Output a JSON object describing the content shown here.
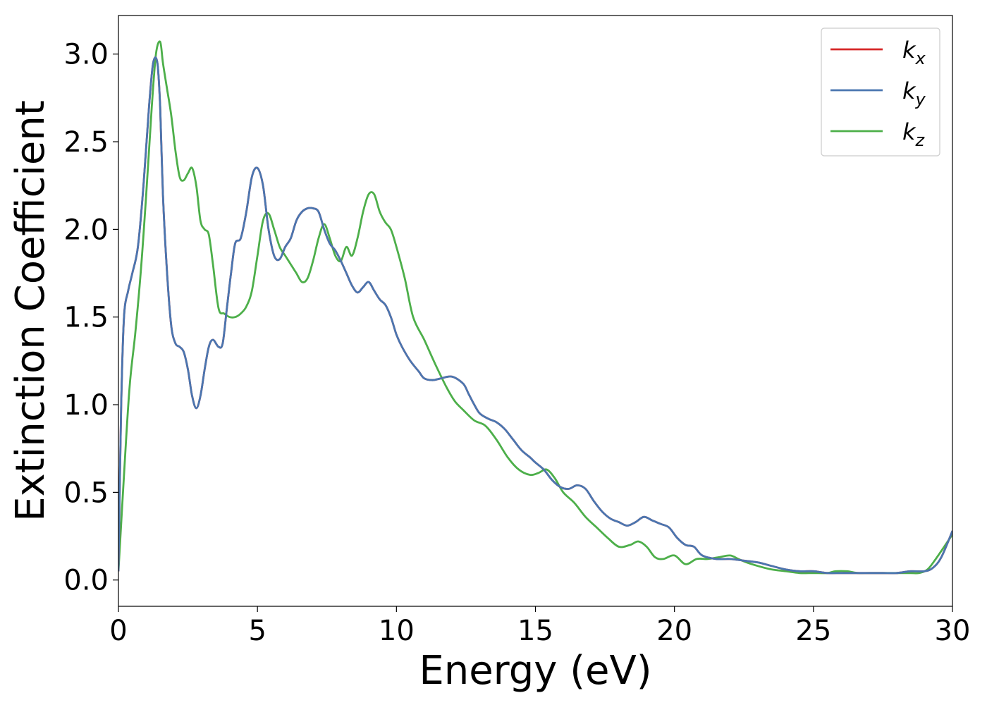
{
  "chart_data": {
    "type": "line",
    "xlabel": "Energy (eV)",
    "ylabel": "Extinction Coefficient",
    "xlim": [
      0,
      30
    ],
    "ylim": [
      -0.15,
      3.22
    ],
    "xticks": [
      "0",
      "5",
      "10",
      "15",
      "20",
      "25",
      "30"
    ],
    "yticks": [
      "0.0",
      "0.5",
      "1.0",
      "1.5",
      "2.0",
      "2.5",
      "3.0"
    ],
    "grid": false,
    "legend_position": "top-right",
    "series": [
      {
        "name": "k",
        "subscript": "x",
        "color": "#d62728",
        "x": [
          0,
          0.1,
          0.2,
          0.35,
          0.5,
          0.7,
          0.9,
          1.1,
          1.25,
          1.4,
          1.5,
          1.6,
          1.75,
          1.9,
          2.05,
          2.2,
          2.35,
          2.5,
          2.65,
          2.8,
          2.95,
          3.1,
          3.25,
          3.4,
          3.6,
          3.75,
          3.9,
          4.05,
          4.2,
          4.4,
          4.6,
          4.8,
          5.0,
          5.2,
          5.4,
          5.6,
          5.8,
          6.0,
          6.2,
          6.4,
          6.6,
          6.8,
          7.0,
          7.2,
          7.4,
          7.6,
          7.8,
          8.0,
          8.2,
          8.4,
          8.6,
          8.8,
          9.0,
          9.2,
          9.4,
          9.6,
          9.8,
          10.0,
          10.2,
          10.5,
          10.8,
          11.0,
          11.3,
          11.6,
          12.0,
          12.4,
          12.6,
          12.8,
          13.0,
          13.3,
          13.6,
          13.9,
          14.2,
          14.5,
          14.8,
          15.0,
          15.3,
          15.6,
          15.9,
          16.2,
          16.5,
          16.8,
          17.1,
          17.4,
          17.7,
          18.0,
          18.3,
          18.6,
          18.9,
          19.2,
          19.5,
          19.8,
          20.1,
          20.4,
          20.7,
          21.0,
          21.5,
          22.0,
          22.5,
          23.0,
          23.5,
          24.0,
          24.5,
          25.0,
          25.5,
          26.0,
          26.5,
          27.0,
          27.5,
          28.0,
          28.5,
          29.0,
          29.3,
          29.6,
          30.0
        ],
        "y": [
          0.05,
          1.0,
          1.5,
          1.65,
          1.75,
          1.9,
          2.25,
          2.7,
          2.95,
          2.95,
          2.7,
          2.2,
          1.75,
          1.45,
          1.35,
          1.33,
          1.3,
          1.2,
          1.05,
          0.98,
          1.05,
          1.2,
          1.33,
          1.37,
          1.33,
          1.35,
          1.55,
          1.75,
          1.92,
          1.95,
          2.1,
          2.3,
          2.35,
          2.25,
          2.0,
          1.85,
          1.83,
          1.9,
          1.95,
          2.05,
          2.1,
          2.12,
          2.12,
          2.1,
          2.0,
          1.92,
          1.88,
          1.82,
          1.75,
          1.68,
          1.64,
          1.67,
          1.7,
          1.65,
          1.6,
          1.57,
          1.5,
          1.4,
          1.33,
          1.25,
          1.19,
          1.15,
          1.14,
          1.15,
          1.16,
          1.12,
          1.06,
          1.0,
          0.95,
          0.92,
          0.9,
          0.86,
          0.8,
          0.74,
          0.7,
          0.67,
          0.63,
          0.57,
          0.53,
          0.52,
          0.54,
          0.52,
          0.45,
          0.39,
          0.35,
          0.33,
          0.31,
          0.33,
          0.36,
          0.34,
          0.32,
          0.3,
          0.24,
          0.2,
          0.19,
          0.14,
          0.12,
          0.12,
          0.11,
          0.1,
          0.08,
          0.06,
          0.05,
          0.05,
          0.04,
          0.04,
          0.04,
          0.04,
          0.04,
          0.04,
          0.05,
          0.05,
          0.07,
          0.13,
          0.28
        ]
      },
      {
        "name": "k",
        "subscript": "y",
        "color": "#4a76b0",
        "x": [
          0,
          0.1,
          0.2,
          0.35,
          0.5,
          0.7,
          0.9,
          1.1,
          1.25,
          1.4,
          1.5,
          1.6,
          1.75,
          1.9,
          2.05,
          2.2,
          2.35,
          2.5,
          2.65,
          2.8,
          2.95,
          3.1,
          3.25,
          3.4,
          3.6,
          3.75,
          3.9,
          4.05,
          4.2,
          4.4,
          4.6,
          4.8,
          5.0,
          5.2,
          5.4,
          5.6,
          5.8,
          6.0,
          6.2,
          6.4,
          6.6,
          6.8,
          7.0,
          7.2,
          7.4,
          7.6,
          7.8,
          8.0,
          8.2,
          8.4,
          8.6,
          8.8,
          9.0,
          9.2,
          9.4,
          9.6,
          9.8,
          10.0,
          10.2,
          10.5,
          10.8,
          11.0,
          11.3,
          11.6,
          12.0,
          12.4,
          12.6,
          12.8,
          13.0,
          13.3,
          13.6,
          13.9,
          14.2,
          14.5,
          14.8,
          15.0,
          15.3,
          15.6,
          15.9,
          16.2,
          16.5,
          16.8,
          17.1,
          17.4,
          17.7,
          18.0,
          18.3,
          18.6,
          18.9,
          19.2,
          19.5,
          19.8,
          20.1,
          20.4,
          20.7,
          21.0,
          21.5,
          22.0,
          22.5,
          23.0,
          23.5,
          24.0,
          24.5,
          25.0,
          25.5,
          26.0,
          26.5,
          27.0,
          27.5,
          28.0,
          28.5,
          29.0,
          29.3,
          29.6,
          30.0
        ],
        "y": [
          0.05,
          1.0,
          1.5,
          1.65,
          1.75,
          1.9,
          2.25,
          2.7,
          2.95,
          2.95,
          2.7,
          2.2,
          1.75,
          1.45,
          1.35,
          1.33,
          1.3,
          1.2,
          1.05,
          0.98,
          1.05,
          1.2,
          1.33,
          1.37,
          1.33,
          1.35,
          1.55,
          1.75,
          1.92,
          1.95,
          2.1,
          2.3,
          2.35,
          2.25,
          2.0,
          1.85,
          1.83,
          1.9,
          1.95,
          2.05,
          2.1,
          2.12,
          2.12,
          2.1,
          2.0,
          1.92,
          1.88,
          1.82,
          1.75,
          1.68,
          1.64,
          1.67,
          1.7,
          1.65,
          1.6,
          1.57,
          1.5,
          1.4,
          1.33,
          1.25,
          1.19,
          1.15,
          1.14,
          1.15,
          1.16,
          1.12,
          1.06,
          1.0,
          0.95,
          0.92,
          0.9,
          0.86,
          0.8,
          0.74,
          0.7,
          0.67,
          0.63,
          0.57,
          0.53,
          0.52,
          0.54,
          0.52,
          0.45,
          0.39,
          0.35,
          0.33,
          0.31,
          0.33,
          0.36,
          0.34,
          0.32,
          0.3,
          0.24,
          0.2,
          0.19,
          0.14,
          0.12,
          0.12,
          0.11,
          0.1,
          0.08,
          0.06,
          0.05,
          0.05,
          0.04,
          0.04,
          0.04,
          0.04,
          0.04,
          0.04,
          0.05,
          0.05,
          0.07,
          0.13,
          0.28
        ]
      },
      {
        "name": "k",
        "subscript": "z",
        "color": "#4daf4a",
        "x": [
          0,
          0.2,
          0.4,
          0.6,
          0.8,
          1.0,
          1.2,
          1.35,
          1.5,
          1.6,
          1.75,
          1.9,
          2.05,
          2.2,
          2.35,
          2.5,
          2.65,
          2.8,
          2.95,
          3.1,
          3.25,
          3.4,
          3.6,
          3.8,
          4.0,
          4.2,
          4.4,
          4.6,
          4.8,
          5.0,
          5.2,
          5.4,
          5.6,
          5.8,
          6.0,
          6.2,
          6.4,
          6.6,
          6.8,
          7.0,
          7.2,
          7.4,
          7.6,
          7.8,
          8.0,
          8.2,
          8.4,
          8.6,
          8.8,
          9.0,
          9.2,
          9.4,
          9.6,
          9.8,
          10.0,
          10.3,
          10.6,
          11.0,
          11.4,
          11.8,
          12.1,
          12.4,
          12.8,
          13.2,
          13.6,
          14.0,
          14.4,
          14.8,
          15.1,
          15.4,
          15.7,
          16.0,
          16.4,
          16.8,
          17.2,
          17.6,
          18.0,
          18.4,
          18.7,
          19.0,
          19.3,
          19.6,
          20.0,
          20.4,
          20.8,
          21.2,
          21.6,
          22.0,
          22.3,
          22.6,
          23.0,
          23.5,
          24.0,
          24.5,
          25.0,
          25.5,
          25.8,
          26.2,
          26.6,
          27.0,
          27.5,
          28.0,
          28.5,
          28.8,
          29.1,
          29.4,
          30.0
        ],
        "y": [
          0.05,
          0.6,
          1.1,
          1.4,
          1.75,
          2.2,
          2.7,
          3.0,
          3.07,
          2.95,
          2.8,
          2.65,
          2.45,
          2.3,
          2.28,
          2.32,
          2.35,
          2.25,
          2.05,
          2.0,
          1.97,
          1.8,
          1.55,
          1.52,
          1.5,
          1.5,
          1.52,
          1.56,
          1.65,
          1.85,
          2.05,
          2.09,
          2.0,
          1.9,
          1.85,
          1.8,
          1.75,
          1.7,
          1.72,
          1.82,
          1.95,
          2.03,
          1.95,
          1.85,
          1.82,
          1.9,
          1.85,
          1.95,
          2.1,
          2.2,
          2.2,
          2.1,
          2.04,
          2.0,
          1.9,
          1.72,
          1.5,
          1.37,
          1.23,
          1.1,
          1.02,
          0.97,
          0.91,
          0.88,
          0.8,
          0.7,
          0.63,
          0.6,
          0.61,
          0.63,
          0.58,
          0.5,
          0.44,
          0.36,
          0.3,
          0.24,
          0.19,
          0.2,
          0.22,
          0.19,
          0.13,
          0.12,
          0.14,
          0.09,
          0.12,
          0.12,
          0.13,
          0.14,
          0.12,
          0.1,
          0.08,
          0.06,
          0.05,
          0.04,
          0.04,
          0.04,
          0.05,
          0.05,
          0.04,
          0.04,
          0.04,
          0.04,
          0.04,
          0.04,
          0.06,
          0.12,
          0.26
        ]
      }
    ]
  }
}
